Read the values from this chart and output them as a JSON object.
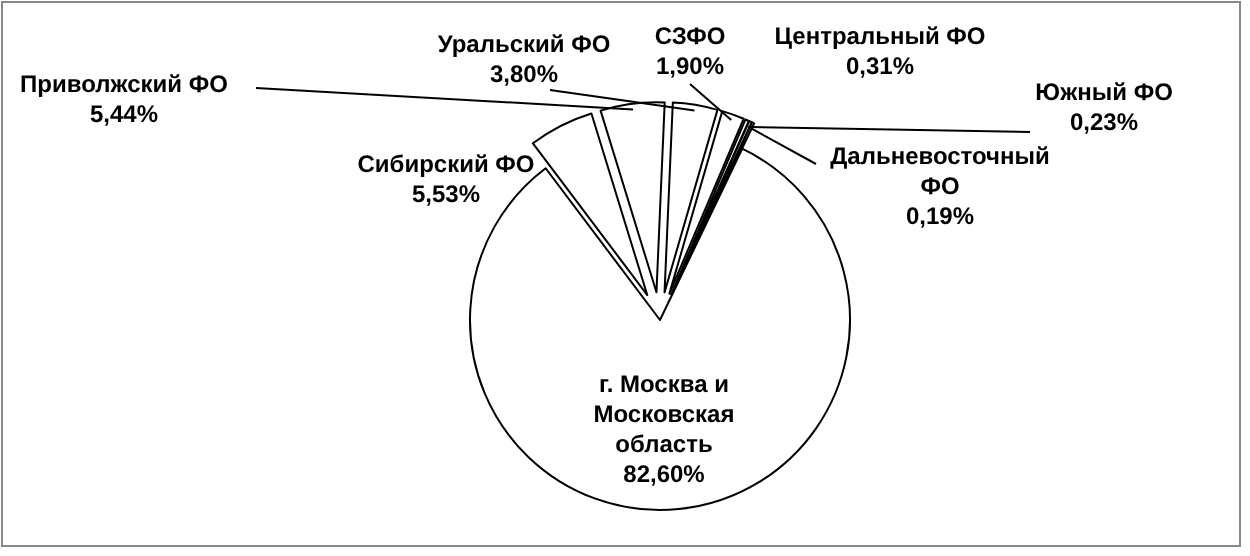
{
  "chart_data": {
    "type": "pie",
    "categories": [
      "Сибирский ФО",
      "Приволжский ФО",
      "Уральский ФО",
      "СЗФО",
      "Центральный ФО",
      "Южный ФО",
      "Дальневосточный ФО",
      "г. Москва и Московская область"
    ],
    "values": [
      5.53,
      5.44,
      3.8,
      1.9,
      0.31,
      0.23,
      0.19,
      82.6
    ],
    "value_labels": [
      "5,53%",
      "5,44%",
      "3,80%",
      "1,90%",
      "0,31%",
      "0,23%",
      "0,19%",
      "82,60%"
    ],
    "colors": [
      "#ffffff",
      "#ffffff",
      "#ffffff",
      "#ffffff",
      "#ffffff",
      "#ffffff",
      "#ffffff",
      "#ffffff"
    ]
  }
}
